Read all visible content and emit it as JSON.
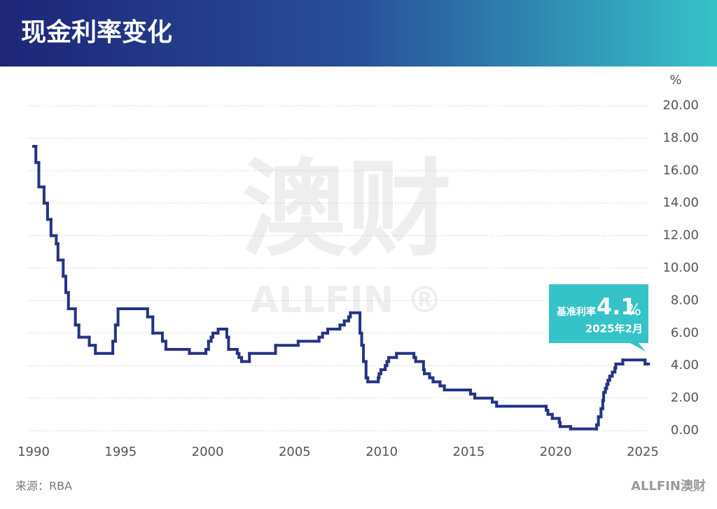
{
  "chart_data": {
    "type": "step",
    "title": "现金利率变化",
    "y_unit": "%",
    "source": "来源：RBA",
    "brand": "ALLFIN澳财",
    "watermark": [
      "澳财",
      "ALLFIN ®"
    ],
    "annotation": {
      "label": "基准利率",
      "value": "4.1",
      "unit": "%",
      "date": "2025年2月"
    },
    "color": "#243387",
    "xlim": [
      1990,
      2025
    ],
    "xticks": [
      1990,
      1995,
      2000,
      2005,
      2010,
      2015,
      2020,
      2025
    ],
    "ylim": [
      0,
      20
    ],
    "yticks": [
      {
        "value": 0,
        "label": "0.00"
      },
      {
        "value": 2,
        "label": "2.00"
      },
      {
        "value": 4,
        "label": "4.00"
      },
      {
        "value": 6,
        "label": "6.00"
      },
      {
        "value": 8,
        "label": "8.00"
      },
      {
        "value": 10,
        "label": "10.00"
      },
      {
        "value": 12,
        "label": "12.00"
      },
      {
        "value": 14,
        "label": "14.00"
      },
      {
        "value": 16,
        "label": "16.00"
      },
      {
        "value": 18,
        "label": "18.00"
      },
      {
        "value": 20,
        "label": "20.00"
      }
    ],
    "grid": true,
    "x": [
      1990.0,
      1990.13,
      1990.3,
      1990.6,
      1990.8,
      1991.0,
      1991.3,
      1991.4,
      1991.7,
      1991.85,
      1992.0,
      1992.4,
      1992.6,
      1993.2,
      1993.55,
      1994.55,
      1994.7,
      1994.85,
      1996.55,
      1996.85,
      1997.4,
      1997.6,
      1998.95,
      1999.9,
      2000.05,
      2000.2,
      2000.3,
      2000.6,
      2001.1,
      2001.2,
      2001.7,
      2001.8,
      2001.95,
      2002.4,
      2003.9,
      2005.2,
      2006.4,
      2006.6,
      2006.9,
      2007.6,
      2007.85,
      2008.1,
      2008.2,
      2008.75,
      2008.85,
      2008.95,
      2009.1,
      2009.2,
      2009.8,
      2009.85,
      2009.95,
      2010.2,
      2010.3,
      2010.4,
      2010.85,
      2011.85,
      2011.95,
      2012.4,
      2012.45,
      2012.75,
      2012.95,
      2013.35,
      2013.6,
      2015.1,
      2015.35,
      2016.35,
      2016.6,
      2019.45,
      2019.55,
      2019.8,
      2020.2,
      2020.25,
      2020.85,
      2022.35,
      2022.45,
      2022.6,
      2022.7,
      2022.75,
      2022.85,
      2022.93,
      2023.0,
      2023.1,
      2023.25,
      2023.4,
      2023.45,
      2023.85,
      2025.13
    ],
    "values": [
      17.5,
      16.5,
      15.0,
      14.0,
      13.0,
      12.0,
      11.5,
      10.5,
      9.5,
      8.5,
      7.5,
      6.5,
      5.75,
      5.25,
      4.75,
      5.5,
      6.5,
      7.5,
      7.0,
      6.0,
      5.5,
      5.0,
      4.75,
      5.0,
      5.5,
      5.75,
      6.0,
      6.25,
      5.75,
      5.0,
      4.75,
      4.5,
      4.25,
      4.75,
      5.25,
      5.5,
      5.75,
      6.0,
      6.25,
      6.5,
      6.75,
      7.0,
      7.25,
      6.0,
      5.25,
      4.25,
      3.25,
      3.0,
      3.25,
      3.5,
      3.75,
      4.0,
      4.25,
      4.5,
      4.75,
      4.5,
      4.25,
      3.75,
      3.5,
      3.25,
      3.0,
      2.75,
      2.5,
      2.25,
      2.0,
      1.75,
      1.5,
      1.25,
      1.0,
      0.75,
      0.5,
      0.25,
      0.1,
      0.35,
      0.85,
      1.35,
      1.85,
      2.35,
      2.6,
      2.85,
      3.1,
      3.35,
      3.6,
      3.85,
      4.1,
      4.35,
      4.1
    ]
  }
}
